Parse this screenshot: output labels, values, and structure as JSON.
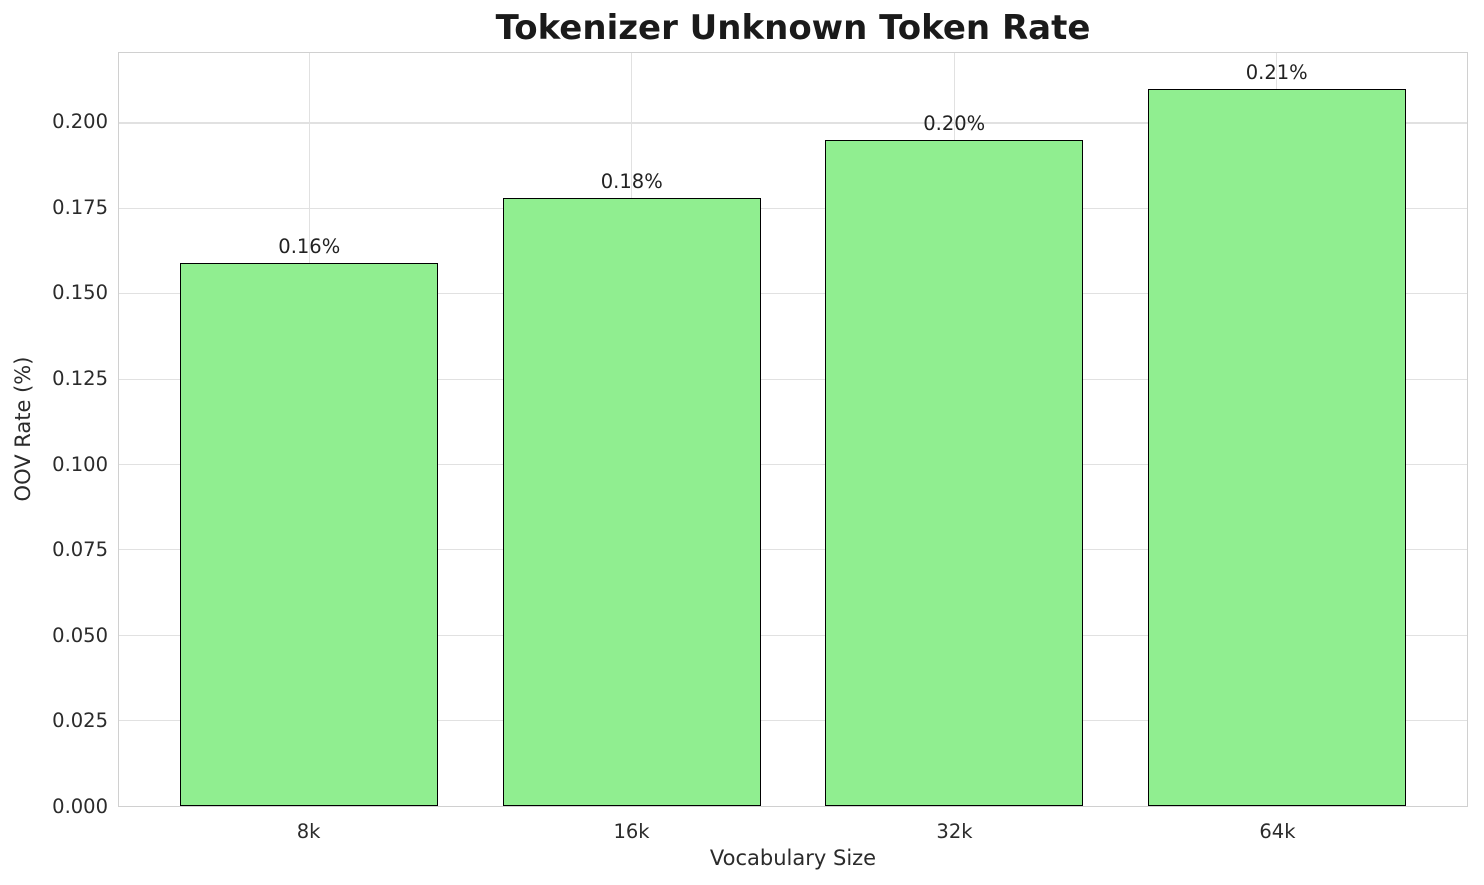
{
  "chart_data": {
    "type": "bar",
    "title": "Tokenizer Unknown Token Rate",
    "xlabel": "Vocabulary Size",
    "ylabel": "OOV Rate (%)",
    "categories": [
      "8k",
      "16k",
      "32k",
      "64k"
    ],
    "values": [
      0.159,
      0.178,
      0.195,
      0.21
    ],
    "bar_labels": [
      "0.16%",
      "0.18%",
      "0.20%",
      "0.21%"
    ],
    "x_positions": [
      0,
      1,
      2,
      3
    ],
    "bar_width": 0.8,
    "xlim": [
      -0.59,
      3.59
    ],
    "ylim": [
      0,
      0.2205
    ],
    "yticks": [
      0,
      0.025,
      0.05,
      0.075,
      0.1,
      0.125,
      0.15,
      0.175,
      0.2
    ],
    "ytick_labels": [
      "0.000",
      "0.025",
      "0.050",
      "0.075",
      "0.100",
      "0.125",
      "0.150",
      "0.175",
      "0.200"
    ],
    "grid": true,
    "legend": false,
    "colors": {
      "bar_fill": "#90EE90",
      "bar_edge": "#000000",
      "grid": "#e1e1e1",
      "spine": "#d0d0d0",
      "text": "#2b2b2b",
      "title": "#1a1a1a"
    }
  }
}
